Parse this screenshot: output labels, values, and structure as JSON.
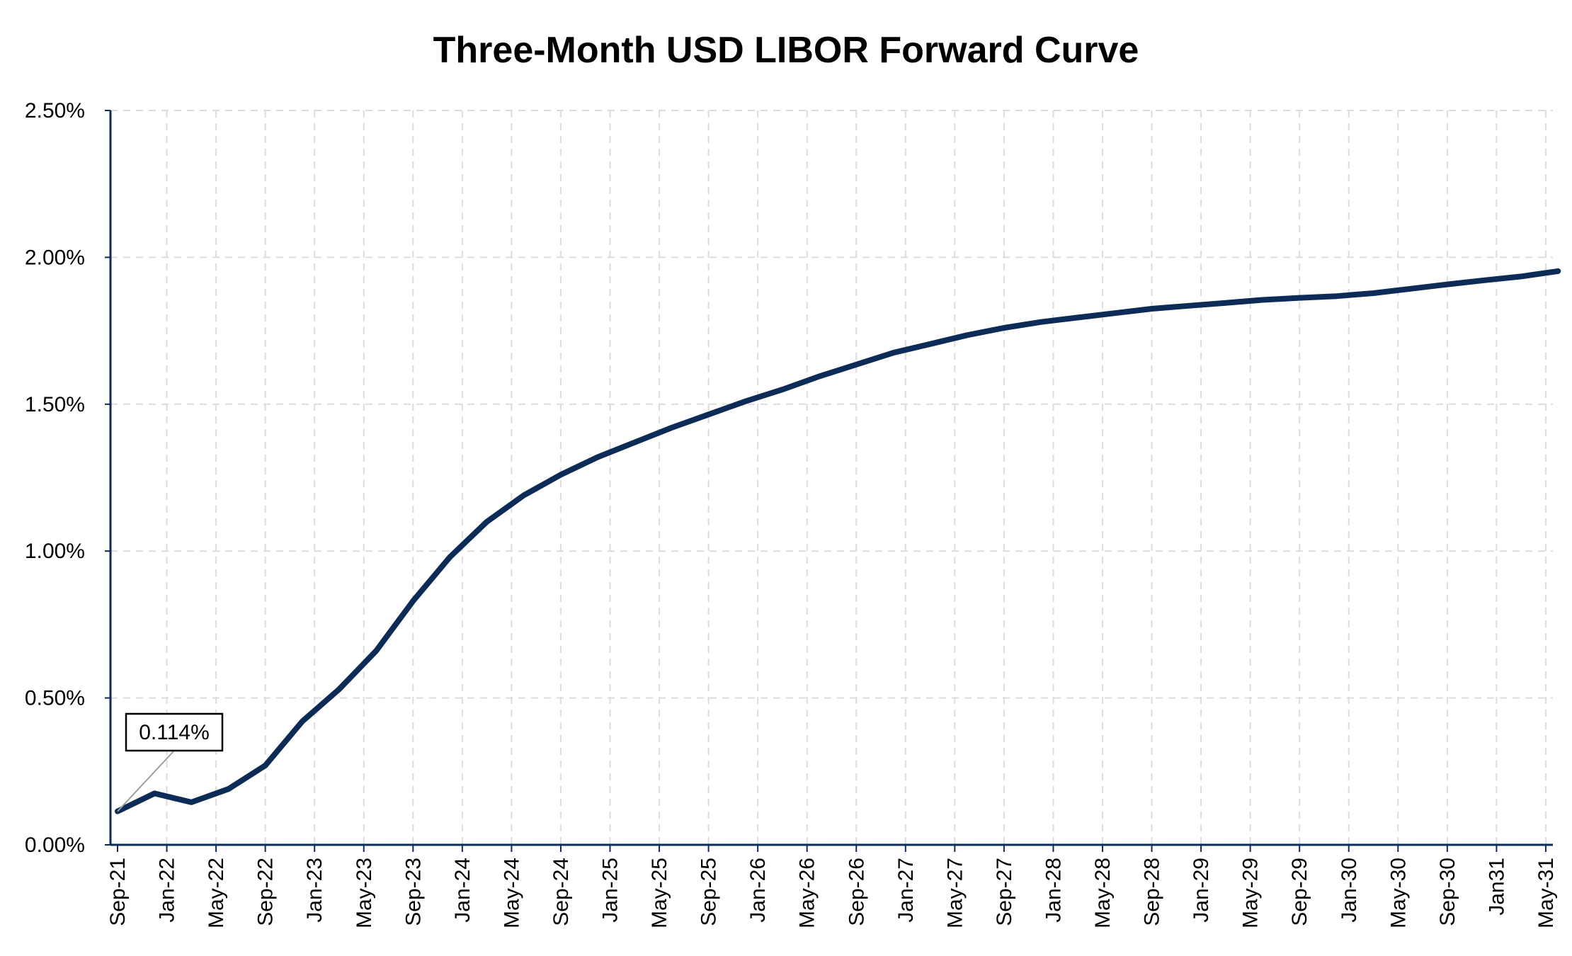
{
  "chart_data": {
    "type": "line",
    "title": "Three-Month USD LIBOR Forward Curve",
    "xlabel": "",
    "ylabel": "",
    "ylim": [
      0,
      2.5
    ],
    "y_unit": "%",
    "y_ticks": [
      "0.00%",
      "0.50%",
      "1.00%",
      "1.50%",
      "2.00%",
      "2.50%"
    ],
    "x_ticks": [
      "Sep-21",
      "Jan-22",
      "May-22",
      "Sep-22",
      "Jan-23",
      "May-23",
      "Sep-23",
      "Jan-24",
      "May-24",
      "Sep-24",
      "Jan-25",
      "May-25",
      "Sep-25",
      "Jan-26",
      "May-26",
      "Sep-26",
      "Jan-27",
      "May-27",
      "Sep-27",
      "Jan-28",
      "May-28",
      "Sep-28",
      "Jan-29",
      "May-29",
      "Sep-29",
      "Jan-30",
      "May-30",
      "Sep-30",
      "Jan31",
      "May-31"
    ],
    "grid": true,
    "legend": "none",
    "annotation": {
      "label": "0.114%",
      "x": "Sep-21",
      "y": 0.114
    },
    "series": [
      {
        "color": "#0d2b57",
        "points": [
          [
            "2021-09",
            0.114
          ],
          [
            "2021-12",
            0.175
          ],
          [
            "2022-03",
            0.145
          ],
          [
            "2022-06",
            0.19
          ],
          [
            "2022-09",
            0.27
          ],
          [
            "2022-12",
            0.42
          ],
          [
            "2023-03",
            0.53
          ],
          [
            "2023-06",
            0.66
          ],
          [
            "2023-09",
            0.83
          ],
          [
            "2023-12",
            0.98
          ],
          [
            "2024-03",
            1.1
          ],
          [
            "2024-06",
            1.19
          ],
          [
            "2024-09",
            1.26
          ],
          [
            "2024-12",
            1.32
          ],
          [
            "2025-03",
            1.37
          ],
          [
            "2025-06",
            1.42
          ],
          [
            "2025-09",
            1.465
          ],
          [
            "2025-12",
            1.51
          ],
          [
            "2026-03",
            1.55
          ],
          [
            "2026-06",
            1.595
          ],
          [
            "2026-09",
            1.635
          ],
          [
            "2026-12",
            1.675
          ],
          [
            "2027-03",
            1.705
          ],
          [
            "2027-06",
            1.735
          ],
          [
            "2027-09",
            1.76
          ],
          [
            "2027-12",
            1.78
          ],
          [
            "2028-03",
            1.795
          ],
          [
            "2028-06",
            1.81
          ],
          [
            "2028-09",
            1.825
          ],
          [
            "2028-12",
            1.835
          ],
          [
            "2029-03",
            1.845
          ],
          [
            "2029-06",
            1.855
          ],
          [
            "2029-09",
            1.862
          ],
          [
            "2029-12",
            1.868
          ],
          [
            "2030-03",
            1.878
          ],
          [
            "2030-06",
            1.893
          ],
          [
            "2030-09",
            1.908
          ],
          [
            "2030-12",
            1.922
          ],
          [
            "2031-03",
            1.935
          ],
          [
            "2031-06",
            1.953
          ]
        ]
      }
    ],
    "colors": {
      "line": "#0d2b57",
      "axis": "#0d2b57",
      "grid": "#dcdcdc",
      "callout_border": "#000000",
      "leader": "#9e9e9e"
    }
  }
}
